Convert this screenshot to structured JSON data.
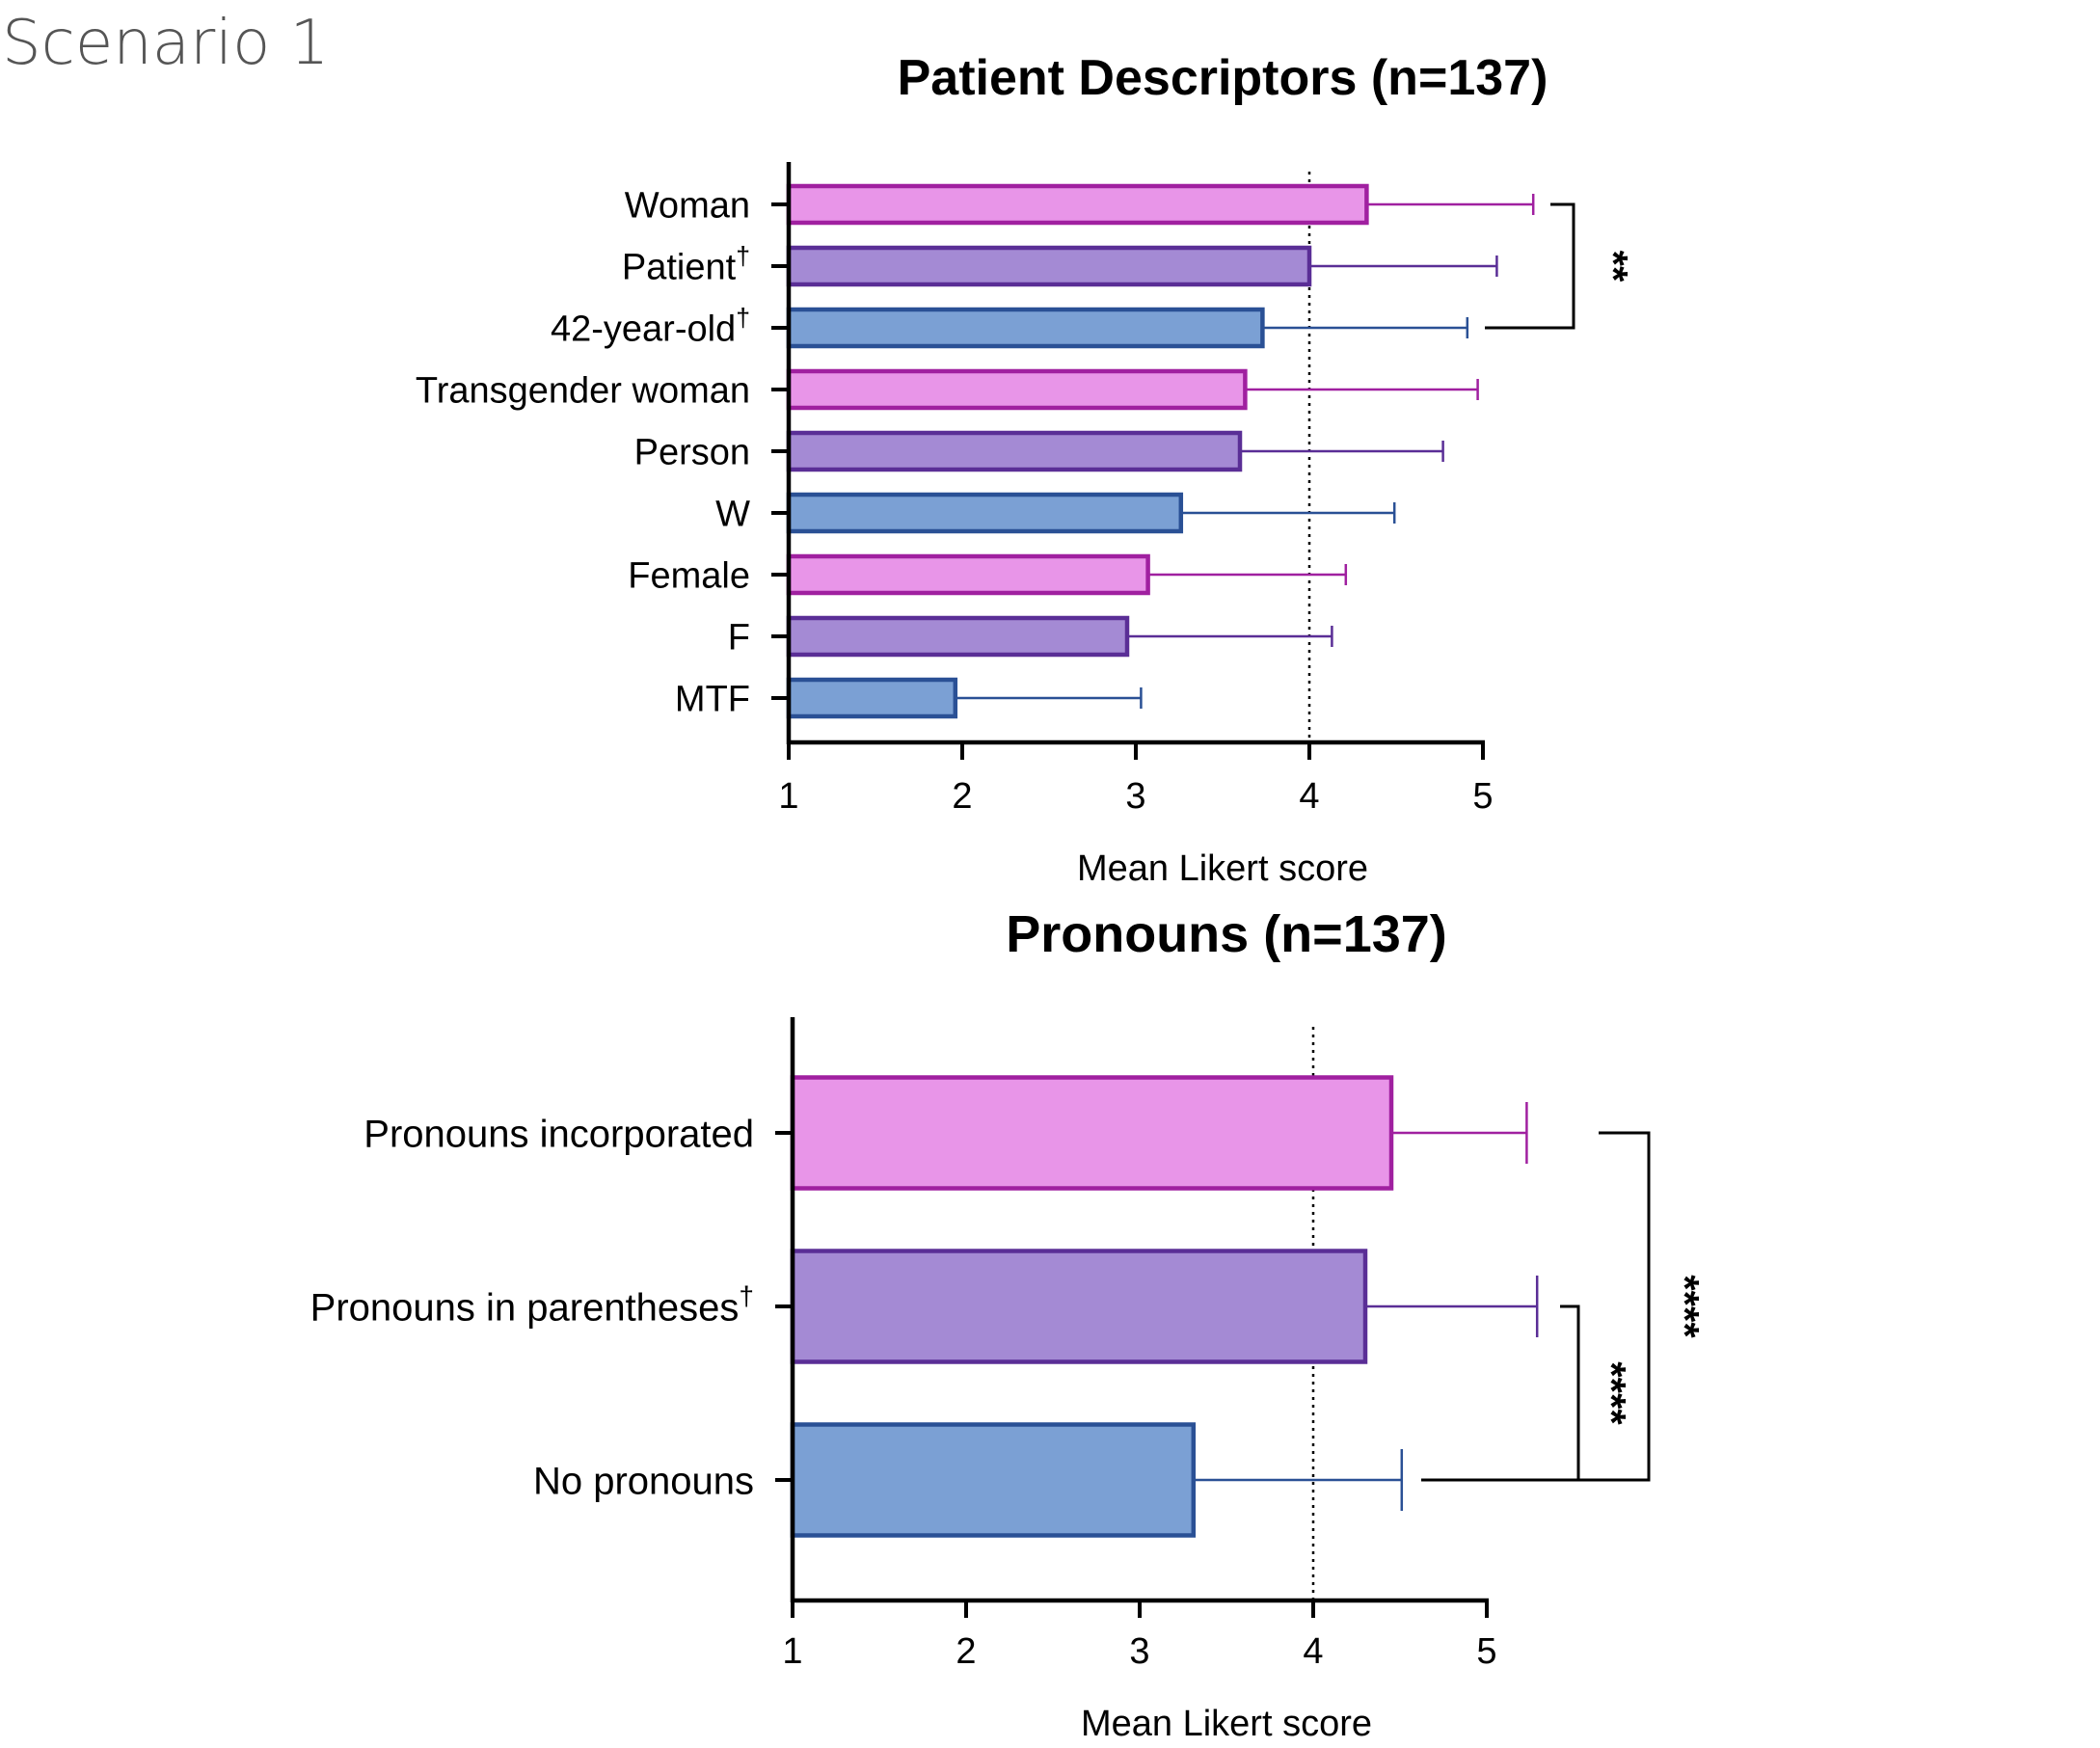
{
  "header": {
    "scenario": "Scenario 1"
  },
  "colors": {
    "pink_fill": "#E895E8",
    "pink_stroke": "#A020A0",
    "purple_fill": "#A48AD4",
    "purple_stroke": "#5A2E96",
    "blue_fill": "#7BA0D4",
    "blue_stroke": "#2A5095",
    "axis": "#000000",
    "reference_line": "#000000"
  },
  "chart_data": [
    {
      "type": "bar",
      "orientation": "horizontal",
      "title": "Patient Descriptors (n=137)",
      "xlabel": "Mean Likert score",
      "ylabel": "",
      "xlim": [
        1,
        5
      ],
      "xticks": [
        "1",
        "2",
        "3",
        "4",
        "5"
      ],
      "reference_line": 4,
      "categories": [
        {
          "label": "Woman",
          "dagger": false
        },
        {
          "label": "Patient",
          "dagger": true
        },
        {
          "label": "42-year-old",
          "dagger": true
        },
        {
          "label": "Transgender woman",
          "dagger": false
        },
        {
          "label": "Person",
          "dagger": false
        },
        {
          "label": "W",
          "dagger": false
        },
        {
          "label": "Female",
          "dagger": false
        },
        {
          "label": "F",
          "dagger": false
        },
        {
          "label": "MTF",
          "dagger": false
        }
      ],
      "dagger_symbol": "†",
      "values": [
        4.33,
        4.0,
        3.73,
        3.63,
        3.6,
        3.26,
        3.07,
        2.95,
        1.96
      ],
      "error_upper": [
        5.29,
        5.08,
        4.91,
        4.97,
        4.77,
        4.49,
        4.21,
        4.13,
        3.03
      ],
      "bar_colors": [
        "pink",
        "purple",
        "blue",
        "pink",
        "purple",
        "blue",
        "pink",
        "purple",
        "blue"
      ],
      "significance": [
        {
          "from": 0,
          "to": 2,
          "label": "**"
        }
      ],
      "grid": false,
      "legend": "none"
    },
    {
      "type": "bar",
      "orientation": "horizontal",
      "title": "Pronouns (n=137)",
      "xlabel": "Mean Likert score",
      "ylabel": "",
      "xlim": [
        1,
        5
      ],
      "xticks": [
        "1",
        "2",
        "3",
        "4",
        "5"
      ],
      "reference_line": 4,
      "categories": [
        {
          "label": "Pronouns incorporated",
          "dagger": false
        },
        {
          "label": "Pronouns in parentheses",
          "dagger": true
        },
        {
          "label": "No pronouns",
          "dagger": false
        }
      ],
      "dagger_symbol": "†",
      "values": [
        4.45,
        4.3,
        3.31
      ],
      "error_upper": [
        5.23,
        5.29,
        4.51
      ],
      "bar_colors": [
        "pink",
        "purple",
        "blue"
      ],
      "significance": [
        {
          "from": 1,
          "to": 2,
          "label": "****"
        },
        {
          "from": 0,
          "to": 2,
          "label": "****"
        }
      ],
      "grid": false,
      "legend": "none"
    }
  ]
}
